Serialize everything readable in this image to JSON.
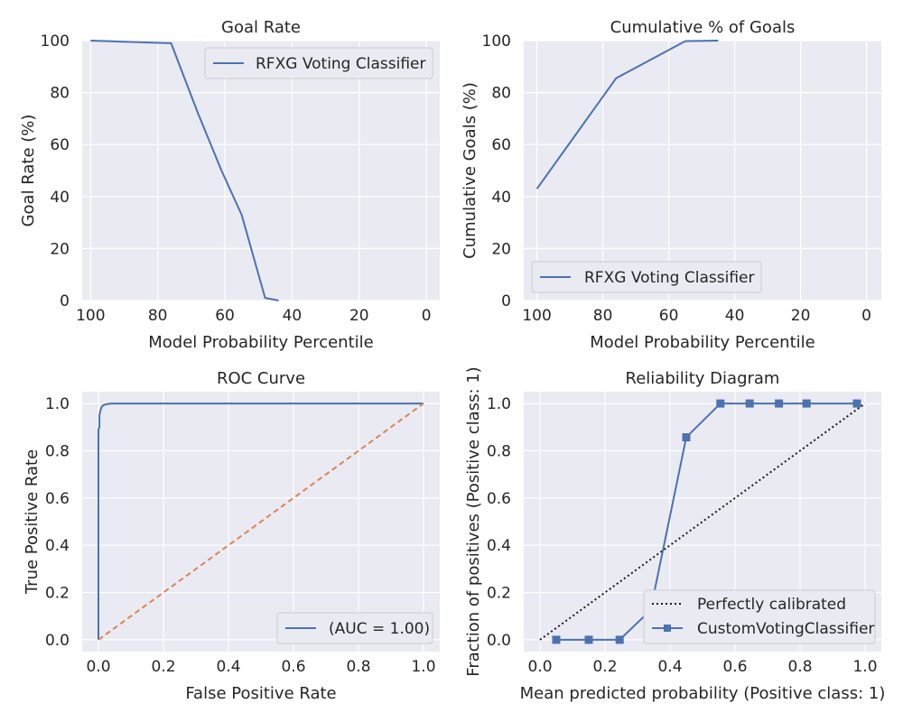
{
  "colors": {
    "series_blue": "#4c72b0",
    "reference_orange": "#dd8452",
    "calibration_black": "#1a1a1a",
    "plot_background": "#eaeaf2",
    "grid": "#ffffff"
  },
  "chart_data": [
    {
      "type": "line",
      "title": "Goal Rate",
      "xlabel": "Model Probability Percentile",
      "ylabel": "Goal Rate (%)",
      "xlim": [
        102.5,
        -4
      ],
      "ylim": [
        0,
        100
      ],
      "x_inverted": true,
      "xticks": [
        100,
        80,
        60,
        40,
        20,
        0
      ],
      "yticks": [
        0,
        20,
        40,
        60,
        80,
        100
      ],
      "grid": true,
      "legend_position": "upper-right",
      "series": [
        {
          "name": "RFXG Voting Classifier",
          "color": "#4c72b0",
          "x": [
            100,
            90,
            76,
            68,
            61,
            55,
            48,
            44
          ],
          "y": [
            100,
            99.6,
            99,
            72,
            50,
            33,
            1,
            0
          ]
        }
      ]
    },
    {
      "type": "line",
      "title": "Cumulative % of Goals",
      "xlabel": "Model Probability Percentile",
      "ylabel": "Cumulative Goals (%)",
      "xlim": [
        104,
        -4.5
      ],
      "ylim": [
        0,
        100
      ],
      "x_inverted": true,
      "xticks": [
        100,
        80,
        60,
        40,
        20,
        0
      ],
      "yticks": [
        0,
        20,
        40,
        60,
        80,
        100
      ],
      "grid": true,
      "legend_position": "lower-left",
      "series": [
        {
          "name": "RFXG Voting Classifier",
          "color": "#4c72b0",
          "x": [
            100,
            76,
            55,
            45
          ],
          "y": [
            43,
            85.5,
            99.8,
            100
          ]
        }
      ]
    },
    {
      "type": "line",
      "title": "ROC Curve",
      "xlabel": "False Positive Rate",
      "ylabel": "True Positive Rate",
      "xlim": [
        -0.05,
        1.05
      ],
      "ylim": [
        -0.05,
        1.05
      ],
      "xticks": [
        0.0,
        0.2,
        0.4,
        0.6,
        0.8,
        1.0
      ],
      "yticks": [
        0.0,
        0.2,
        0.4,
        0.6,
        0.8,
        1.0
      ],
      "grid": true,
      "legend_position": "lower-right",
      "series": [
        {
          "name": "(AUC = 1.00)",
          "color": "#4c72b0",
          "x": [
            0,
            0,
            0.003,
            0.003,
            0.006,
            0.01,
            0.015,
            0.025,
            0.04,
            0.06,
            1.0
          ],
          "y": [
            0,
            0.89,
            0.9,
            0.95,
            0.97,
            0.985,
            0.993,
            0.997,
            1.0,
            1.0,
            1.0
          ]
        },
        {
          "name": "",
          "color": "#dd8452",
          "dashed": true,
          "x": [
            0,
            1
          ],
          "y": [
            0,
            1
          ]
        }
      ]
    },
    {
      "type": "line",
      "title": "Reliability Diagram",
      "xlabel": "Mean predicted probability (Positive class: 1)",
      "ylabel": "Fraction of positives (Positive class: 1)",
      "xlim": [
        -0.05,
        1.05
      ],
      "ylim": [
        -0.05,
        1.05
      ],
      "xticks": [
        0.0,
        0.2,
        0.4,
        0.6,
        0.8,
        1.0
      ],
      "yticks": [
        0.0,
        0.2,
        0.4,
        0.6,
        0.8,
        1.0
      ],
      "grid": true,
      "legend_position": "lower-right",
      "series": [
        {
          "name": "Perfectly calibrated",
          "color": "#1a1a1a",
          "dotted": true,
          "x": [
            0,
            1
          ],
          "y": [
            0,
            1
          ]
        },
        {
          "name": "CustomVotingClassifier",
          "color": "#4c72b0",
          "marker": "square",
          "x": [
            0.05,
            0.15,
            0.245,
            0.34,
            0.45,
            0.555,
            0.645,
            0.735,
            0.82,
            0.975
          ],
          "y": [
            0.0,
            0.0,
            0.0,
            0.125,
            0.857,
            1.0,
            1.0,
            1.0,
            1.0,
            1.0
          ]
        }
      ]
    }
  ]
}
